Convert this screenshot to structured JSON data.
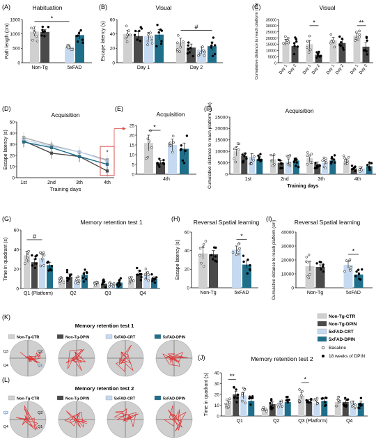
{
  "colors": {
    "ntg_ctr": "#d0d0d0",
    "ntg_dpin": "#4a4a4a",
    "fad_ctr": "#c5d9f1",
    "fad_dpin": "#1f6f8b",
    "axis": "#000000",
    "highlight": "#d9534f",
    "trace": "#e03030",
    "arena": "#cfcfcf"
  },
  "legend_groups": [
    {
      "label": "Non-Tg-CTR",
      "color_key": "ntg_ctr"
    },
    {
      "label": "Non-Tg-DPIN",
      "color_key": "ntg_dpin"
    },
    {
      "label": "5xFAD-CRT",
      "color_key": "fad_ctr"
    },
    {
      "label": "5xFAD-DPIN",
      "color_key": "fad_dpin"
    }
  ],
  "legend_timepoints": [
    "Basaline",
    "18 weeks of DPIN"
  ],
  "chart_data": [
    {
      "id": "A",
      "letter": "(A)",
      "type": "bar",
      "title": "Habituation",
      "ylabel": "Path length (cm)",
      "ylim": [
        0,
        1500
      ],
      "yticks": [
        0,
        500,
        1000,
        1500
      ],
      "categories": [
        "Non-Tg",
        "5xFAD"
      ],
      "values": [
        [
          1080,
          1070
        ],
        [
          560,
          960
        ]
      ],
      "errors": [
        [
          160,
          80
        ],
        [
          60,
          130
        ]
      ],
      "sig": [
        {
          "from": [
            0,
            0
          ],
          "to": [
            1,
            0
          ],
          "label": "*",
          "y": 1430
        }
      ]
    },
    {
      "id": "B",
      "letter": "(B)",
      "type": "bar",
      "title": "Visual",
      "ylabel": "Escape latency (s)",
      "ylim": [
        0,
        60
      ],
      "yticks": [
        0,
        20,
        40,
        60
      ],
      "categories": [
        "Day 1",
        "Day 2"
      ],
      "values": [
        [
          40,
          37,
          37,
          39
        ],
        [
          28,
          21,
          18,
          23
        ]
      ],
      "errors": [
        [
          5,
          6,
          5,
          7
        ],
        [
          6,
          5,
          4,
          6
        ]
      ],
      "sig": [
        {
          "from": [
            1,
            0
          ],
          "to": [
            1,
            3
          ],
          "label": "#",
          "y": 45
        }
      ]
    },
    {
      "id": "C",
      "letter": "(C)",
      "type": "bar",
      "title": "Visual",
      "ylabel": "Cumulative distance to reach platform (cm)",
      "ylim": [
        0,
        35000
      ],
      "yticks": [
        0,
        5000,
        10000,
        15000,
        20000,
        25000,
        30000,
        35000
      ],
      "categories": [
        "Non-Tg-CTR",
        "Non-Tg-DPIN",
        "5xFAD-CRT",
        "5xFAD-DPIN"
      ],
      "sublabels": [
        "Day 1",
        "Day 2"
      ],
      "values": [
        [
          16500,
          13500
        ],
        [
          15000,
          6500
        ],
        [
          18000,
          16000
        ],
        [
          22000,
          13000
        ]
      ],
      "errors": [
        [
          2500,
          3000
        ],
        [
          3000,
          1200
        ],
        [
          2500,
          3000
        ],
        [
          2000,
          3500
        ]
      ],
      "sig": [
        {
          "from": [
            1,
            0
          ],
          "to": [
            1,
            1
          ],
          "label": "*",
          "y": 30000
        },
        {
          "from": [
            3,
            0
          ],
          "to": [
            3,
            1
          ],
          "label": "**",
          "y": 30000
        }
      ]
    },
    {
      "id": "D",
      "letter": "(D)",
      "type": "line",
      "title": "Acquisition",
      "ylabel": "Escape latency (s)",
      "xlabel": "Training days",
      "ylim": [
        0,
        50
      ],
      "yticks": [
        0,
        10,
        20,
        30,
        40,
        50
      ],
      "categories": [
        "1st",
        "2nd",
        "3th",
        "4th"
      ],
      "series": [
        {
          "values": [
            36,
            29,
            23,
            16
          ],
          "color_key": "ntg_ctr"
        },
        {
          "values": [
            33,
            22,
            19,
            6
          ],
          "color_key": "ntg_dpin"
        },
        {
          "values": [
            34,
            28,
            23,
            15
          ],
          "color_key": "fad_ctr"
        },
        {
          "values": [
            32,
            27,
            19,
            12
          ],
          "color_key": "fad_dpin"
        }
      ],
      "sig_label": "*"
    },
    {
      "id": "E",
      "letter": "(E)",
      "type": "bar",
      "title": "Acquisition",
      "ylim": [
        0,
        25
      ],
      "yticks": [
        0,
        5,
        10,
        15,
        20,
        25
      ],
      "categories": [
        "4th"
      ],
      "values": [
        [
          16,
          6,
          15,
          13
        ]
      ],
      "errors": [
        [
          4,
          1,
          3,
          3
        ]
      ],
      "sig": [
        {
          "from": [
            0,
            0
          ],
          "to": [
            0,
            1
          ],
          "label": "*",
          "y": 22.5
        }
      ]
    },
    {
      "id": "F",
      "letter": "(F)",
      "type": "bar",
      "title": "Acquisition",
      "ylabel": "Cumulative distance to reach platform (cm)",
      "xlabel": "Training days",
      "ylim": [
        0,
        25000
      ],
      "yticks": [
        0,
        5000,
        10000,
        15000,
        20000,
        25000
      ],
      "categories": [
        "1st",
        "2nd",
        "3th",
        "4th"
      ],
      "values": [
        [
          10000,
          8000,
          7500,
          6500
        ],
        [
          6500,
          5000,
          5500,
          6000
        ],
        [
          7000,
          4500,
          5000,
          6000
        ],
        [
          5500,
          2500,
          2500,
          3500
        ]
      ],
      "errors": [
        [
          2000,
          1200,
          1500,
          1200
        ],
        [
          1500,
          1000,
          1200,
          1200
        ],
        [
          1500,
          800,
          1000,
          1000
        ],
        [
          1200,
          500,
          600,
          800
        ]
      ],
      "sig": []
    },
    {
      "id": "G",
      "letter": "(G)",
      "type": "bar",
      "title": "Memory retention test 1",
      "ylabel": "Time in quadrant (s)",
      "ylim": [
        0,
        60
      ],
      "yticks": [
        0,
        20,
        40,
        60
      ],
      "categories": [
        "Q1 (Platform)",
        "Q2",
        "Q3",
        "Q4"
      ],
      "values": [
        [
          34,
          27,
          31,
          24
        ],
        [
          9,
          12,
          9,
          14
        ],
        [
          5,
          5,
          4,
          6
        ],
        [
          10,
          15,
          14,
          10
        ]
      ],
      "errors": [
        [
          4,
          3,
          4,
          3
        ],
        [
          2,
          3,
          2,
          3
        ],
        [
          1,
          2,
          1,
          2
        ],
        [
          2,
          3,
          3,
          2
        ]
      ],
      "sig": [
        {
          "from": [
            0,
            0
          ],
          "to": [
            0,
            2
          ],
          "label": "#",
          "y": 50
        }
      ]
    },
    {
      "id": "H",
      "letter": "(H)",
      "type": "bar",
      "title": "Reversal Spatial learning",
      "ylabel": "Escape latency (s)",
      "ylim": [
        0,
        60
      ],
      "yticks": [
        0,
        20,
        40,
        60
      ],
      "categories": [
        "Non-Tg",
        "5xFAD"
      ],
      "values": [
        [
          37,
          36
        ],
        [
          41,
          25
        ]
      ],
      "errors": [
        [
          6,
          4
        ],
        [
          4,
          4
        ]
      ],
      "sig": [
        {
          "from": [
            1,
            0
          ],
          "to": [
            1,
            1
          ],
          "label": "*",
          "y": 52
        }
      ]
    },
    {
      "id": "I",
      "letter": "(I)",
      "type": "bar",
      "title": "Reversal Spatial learning",
      "ylabel": "Cumulative distance to reach platform (cm)",
      "ylim": [
        0,
        40000
      ],
      "yticks": [
        0,
        10000,
        20000,
        30000,
        40000
      ],
      "categories": [
        "Non-Tg",
        "5xFAD"
      ],
      "values": [
        [
          15500,
          15000
        ],
        [
          16500,
          9500
        ]
      ],
      "errors": [
        [
          3500,
          1500
        ],
        [
          2500,
          1800
        ]
      ],
      "sig": [
        {
          "from": [
            1,
            0
          ],
          "to": [
            1,
            1
          ],
          "label": "*",
          "y": 24000
        }
      ]
    },
    {
      "id": "J",
      "letter": "(J)",
      "type": "bar",
      "title": "Memory retention test 2",
      "ylabel": "Time in quadrant (s)",
      "ylim": [
        0,
        40
      ],
      "yticks": [
        0,
        10,
        20,
        30,
        40
      ],
      "categories": [
        "Q1",
        "Q2",
        "Q3 (Platform)",
        "Q4"
      ],
      "values": [
        [
          12,
          20,
          19,
          14
        ],
        [
          6,
          11,
          12,
          13
        ],
        [
          19,
          13,
          12,
          14
        ],
        [
          13,
          13,
          12,
          12
        ]
      ],
      "errors": [
        [
          2,
          3,
          3,
          2
        ],
        [
          1,
          2,
          2,
          2
        ],
        [
          3,
          2,
          2,
          2
        ],
        [
          2,
          2,
          2,
          2
        ]
      ],
      "sig": [
        {
          "from": [
            0,
            0
          ],
          "to": [
            0,
            1
          ],
          "label": "**",
          "y": 34
        },
        {
          "from": [
            2,
            0
          ],
          "to": [
            2,
            1
          ],
          "label": "*",
          "y": 31
        }
      ]
    }
  ],
  "panels_K": {
    "letter": "(K)",
    "title": "Memory retention test 1",
    "quadrants": [
      "Q3",
      "Q2",
      "Q4",
      "Q1"
    ]
  },
  "panels_L": {
    "letter": "(L)",
    "title": "Memory retention test 2",
    "quadrants": [
      "Q3",
      "Q2",
      "Q4",
      "Q1"
    ]
  }
}
